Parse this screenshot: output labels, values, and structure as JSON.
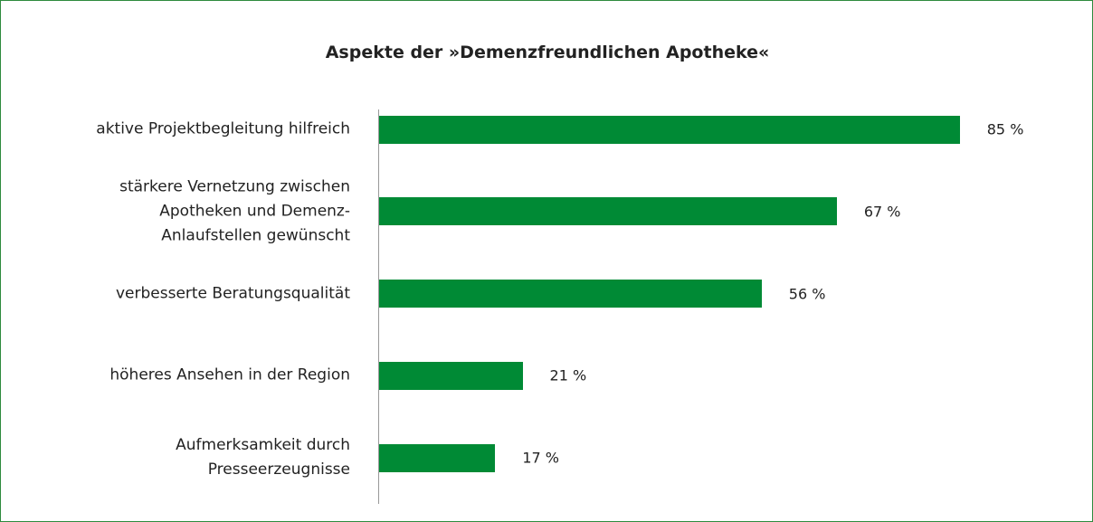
{
  "chart_data": {
    "type": "bar",
    "orientation": "horizontal",
    "title": "Aspekte der »Demenzfreundlichen Apotheke«",
    "categories": [
      "aktive Projektbegleitung hilfreich",
      "stärkere Vernetzung zwischen\nApotheken und Demenz-\nAnlaufstellen gewünscht",
      "verbesserte Beratungsqualität",
      "höheres Ansehen in der Region",
      "Aufmerksamkeit durch\nPresseerzeugnisse"
    ],
    "values": [
      85,
      67,
      56,
      21,
      17
    ],
    "value_labels": [
      "85 %",
      "67 %",
      "56 %",
      "21 %",
      "17 %"
    ],
    "color": "#008a35"
  }
}
